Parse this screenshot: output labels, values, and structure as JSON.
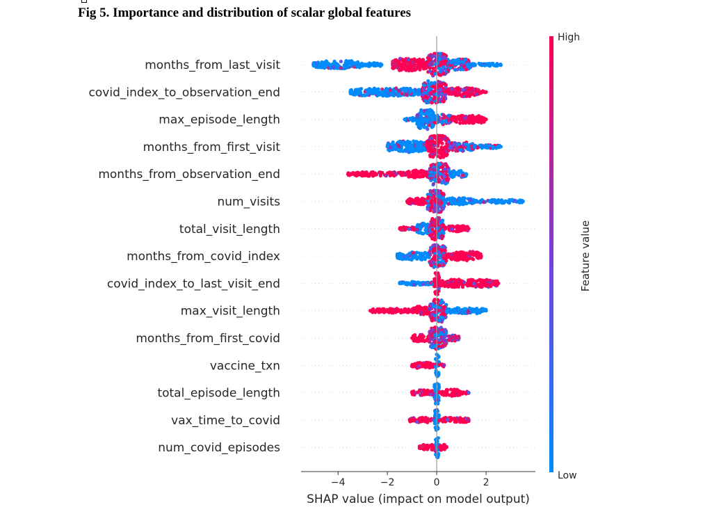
{
  "figure": {
    "title": "Fig 5. Importance and distribution of scalar global features"
  },
  "chart_data": {
    "type": "scatter",
    "subtype": "shap-beeswarm",
    "xlabel": "SHAP value (impact on model output)",
    "xlim": [
      -5.5,
      4.0
    ],
    "xticks": [
      -4,
      -2,
      0,
      2
    ],
    "xtick_labels": [
      "−4",
      "−2",
      "0",
      "2"
    ],
    "colorbar": {
      "title": "Feature value",
      "high_label": "High",
      "low_label": "Low",
      "high_color": "#ff0052",
      "low_color": "#008bfb"
    },
    "features": [
      {
        "name": "months_from_last_visit",
        "min": -5.0,
        "max": 2.6,
        "segments": [
          {
            "from": -5.0,
            "to": -3.0,
            "color": "low",
            "thick": 0.35
          },
          {
            "from": -3.0,
            "to": -2.2,
            "color": "low",
            "thick": 0.15
          },
          {
            "from": -1.8,
            "to": -0.4,
            "color": "high",
            "thick": 0.55
          },
          {
            "from": -0.4,
            "to": 0.5,
            "color": "mix",
            "thick": 1.0
          },
          {
            "from": 0.5,
            "to": 1.4,
            "color": "lowmix",
            "thick": 0.5
          },
          {
            "from": 1.4,
            "to": 2.6,
            "color": "low",
            "thick": 0.12
          }
        ]
      },
      {
        "name": "covid_index_to_observation_end",
        "min": -3.5,
        "max": 2.0,
        "segments": [
          {
            "from": -3.5,
            "to": -0.6,
            "color": "low",
            "thick": 0.35
          },
          {
            "from": -0.6,
            "to": 0.4,
            "color": "mix",
            "thick": 1.0
          },
          {
            "from": 0.4,
            "to": 1.7,
            "color": "high",
            "thick": 0.4
          },
          {
            "from": 1.7,
            "to": 2.0,
            "color": "high",
            "thick": 0.1
          }
        ]
      },
      {
        "name": "max_episode_length",
        "min": -1.3,
        "max": 2.0,
        "segments": [
          {
            "from": -1.3,
            "to": -0.8,
            "color": "low",
            "thick": 0.15
          },
          {
            "from": -0.8,
            "to": -0.1,
            "color": "low",
            "thick": 0.9
          },
          {
            "from": -0.1,
            "to": 0.6,
            "color": "mix",
            "thick": 0.45
          },
          {
            "from": 0.6,
            "to": 2.0,
            "color": "high",
            "thick": 0.35
          }
        ]
      },
      {
        "name": "months_from_first_visit",
        "min": -2.0,
        "max": 2.6,
        "segments": [
          {
            "from": -2.0,
            "to": -0.4,
            "color": "low",
            "thick": 0.5
          },
          {
            "from": -0.4,
            "to": 0.5,
            "color": "high",
            "thick": 1.0
          },
          {
            "from": 0.5,
            "to": 1.5,
            "color": "mix",
            "thick": 0.4
          },
          {
            "from": 1.5,
            "to": 2.6,
            "color": "lowmix",
            "thick": 0.15
          }
        ]
      },
      {
        "name": "months_from_observation_end",
        "min": -3.6,
        "max": 1.2,
        "segments": [
          {
            "from": -3.6,
            "to": -1.2,
            "color": "high",
            "thick": 0.18
          },
          {
            "from": -1.2,
            "to": -0.3,
            "color": "high",
            "thick": 0.35
          },
          {
            "from": -0.3,
            "to": 0.5,
            "color": "mix",
            "thick": 1.0
          },
          {
            "from": 0.5,
            "to": 1.2,
            "color": "low",
            "thick": 0.3
          }
        ]
      },
      {
        "name": "num_visits",
        "min": -1.2,
        "max": 3.5,
        "segments": [
          {
            "from": -1.2,
            "to": -0.4,
            "color": "high",
            "thick": 0.3
          },
          {
            "from": -0.4,
            "to": 0.3,
            "color": "mix",
            "thick": 1.0
          },
          {
            "from": 0.3,
            "to": 1.5,
            "color": "low",
            "thick": 0.3
          },
          {
            "from": 1.5,
            "to": 3.5,
            "color": "low",
            "thick": 0.15
          }
        ]
      },
      {
        "name": "total_visit_length",
        "min": -1.5,
        "max": 1.3,
        "segments": [
          {
            "from": -1.5,
            "to": -0.8,
            "color": "high",
            "thick": 0.15
          },
          {
            "from": -0.8,
            "to": -0.3,
            "color": "low",
            "thick": 0.5
          },
          {
            "from": -0.3,
            "to": 0.3,
            "color": "mix",
            "thick": 1.0
          },
          {
            "from": 0.3,
            "to": 1.3,
            "color": "high",
            "thick": 0.25
          }
        ]
      },
      {
        "name": "months_from_covid_index",
        "min": -1.6,
        "max": 1.8,
        "segments": [
          {
            "from": -1.6,
            "to": -0.3,
            "color": "low",
            "thick": 0.35
          },
          {
            "from": -0.3,
            "to": 0.4,
            "color": "mix",
            "thick": 1.0
          },
          {
            "from": 0.4,
            "to": 1.8,
            "color": "high",
            "thick": 0.4
          }
        ]
      },
      {
        "name": "covid_index_to_last_visit_end",
        "min": -1.5,
        "max": 2.5,
        "segments": [
          {
            "from": -1.5,
            "to": -0.1,
            "color": "low",
            "thick": 0.15
          },
          {
            "from": -0.1,
            "to": 0.1,
            "color": "high",
            "thick": 1.0
          },
          {
            "from": 0.1,
            "to": 2.5,
            "color": "high",
            "thick": 0.35
          }
        ]
      },
      {
        "name": "max_visit_length",
        "min": -2.7,
        "max": 2.0,
        "segments": [
          {
            "from": -2.7,
            "to": -1.0,
            "color": "high",
            "thick": 0.2
          },
          {
            "from": -1.0,
            "to": -0.3,
            "color": "high",
            "thick": 0.4
          },
          {
            "from": -0.3,
            "to": 0.4,
            "color": "mix",
            "thick": 1.0
          },
          {
            "from": 0.4,
            "to": 2.0,
            "color": "low",
            "thick": 0.25
          }
        ]
      },
      {
        "name": "months_from_first_covid",
        "min": -1.0,
        "max": 0.9,
        "segments": [
          {
            "from": -1.0,
            "to": -0.3,
            "color": "high",
            "thick": 0.3
          },
          {
            "from": -0.3,
            "to": 0.4,
            "color": "mix",
            "thick": 1.0
          },
          {
            "from": 0.4,
            "to": 0.9,
            "color": "highmix",
            "thick": 0.25
          }
        ]
      },
      {
        "name": "vaccine_txn",
        "min": -1.0,
        "max": 0.3,
        "segments": [
          {
            "from": -1.0,
            "to": -0.05,
            "color": "high",
            "thick": 0.25
          },
          {
            "from": -0.05,
            "to": 0.1,
            "color": "low",
            "thick": 1.0
          },
          {
            "from": 0.1,
            "to": 0.3,
            "color": "high",
            "thick": 0.15
          }
        ]
      },
      {
        "name": "total_episode_length",
        "min": -1.0,
        "max": 1.3,
        "segments": [
          {
            "from": -1.0,
            "to": -0.1,
            "color": "high",
            "thick": 0.25
          },
          {
            "from": -0.1,
            "to": 0.1,
            "color": "low",
            "thick": 1.0
          },
          {
            "from": 0.1,
            "to": 1.0,
            "color": "high",
            "thick": 0.3
          },
          {
            "from": 1.0,
            "to": 1.3,
            "color": "high",
            "thick": 0.1
          }
        ]
      },
      {
        "name": "vax_time_to_covid",
        "min": -1.1,
        "max": 1.3,
        "segments": [
          {
            "from": -1.1,
            "to": -0.1,
            "color": "high",
            "thick": 0.22
          },
          {
            "from": -0.1,
            "to": 0.1,
            "color": "low",
            "thick": 1.0
          },
          {
            "from": 0.1,
            "to": 1.3,
            "color": "high",
            "thick": 0.22
          }
        ]
      },
      {
        "name": "num_covid_episodes",
        "min": -0.7,
        "max": 0.4,
        "segments": [
          {
            "from": -0.7,
            "to": -0.05,
            "color": "high",
            "thick": 0.25
          },
          {
            "from": -0.05,
            "to": 0.1,
            "color": "low",
            "thick": 1.0
          },
          {
            "from": 0.1,
            "to": 0.4,
            "color": "high",
            "thick": 0.25
          }
        ]
      }
    ]
  }
}
